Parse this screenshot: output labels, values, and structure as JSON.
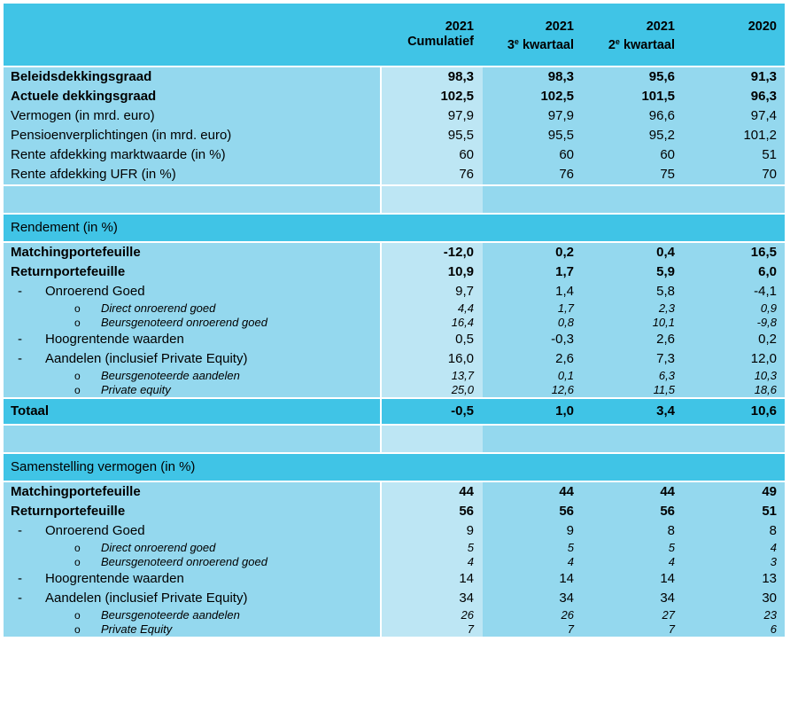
{
  "header": {
    "columns": [
      {
        "year": "2021",
        "label": "Cumulatief",
        "sup": ""
      },
      {
        "year": "2021",
        "label": " kwartaal",
        "prefix": "3",
        "sup": "e"
      },
      {
        "year": "2021",
        "label": " kwartaal",
        "prefix": "2",
        "sup": "e"
      },
      {
        "year": "2020",
        "label": "",
        "sup": ""
      }
    ]
  },
  "top": [
    {
      "label": "Beleidsdekkingsgraad",
      "values": [
        "98,3",
        "98,3",
        "95,6",
        "91,3"
      ],
      "bold": true
    },
    {
      "label": "Actuele dekkingsgraad",
      "values": [
        "102,5",
        "102,5",
        "101,5",
        "96,3"
      ],
      "bold": true
    },
    {
      "label": "Vermogen (in mrd. euro)",
      "values": [
        "97,9",
        "97,9",
        "96,6",
        "97,4"
      ]
    },
    {
      "label": "Pensioenverplichtingen (in mrd. euro)",
      "values": [
        "95,5",
        "95,5",
        "95,2",
        "101,2"
      ]
    },
    {
      "label": "Rente afdekking marktwaarde (in %)",
      "values": [
        "60",
        "60",
        "60",
        "51"
      ]
    },
    {
      "label": "Rente afdekking UFR (in %)",
      "values": [
        "76",
        "76",
        "75",
        "70"
      ]
    }
  ],
  "rendement": {
    "title": "Rendement (in %)",
    "matching": {
      "label": "Matchingportefeuille",
      "values": [
        "-12,0",
        "0,2",
        "0,4",
        "16,5"
      ]
    },
    "return": {
      "label": "Returnportefeuille",
      "values": [
        "10,9",
        "1,7",
        "5,9",
        "6,0"
      ]
    },
    "details": [
      {
        "level": 1,
        "label": "Onroerend Goed",
        "values": [
          "9,7",
          "1,4",
          "5,8",
          "-4,1"
        ]
      },
      {
        "level": 2,
        "label": "Direct onroerend goed",
        "values": [
          "4,4",
          "1,7",
          "2,3",
          "0,9"
        ]
      },
      {
        "level": 2,
        "label": "Beursgenoteerd onroerend goed",
        "values": [
          "16,4",
          "0,8",
          "10,1",
          "-9,8"
        ]
      },
      {
        "level": 1,
        "label": "Hoogrentende waarden",
        "values": [
          "0,5",
          "-0,3",
          "2,6",
          "0,2"
        ]
      },
      {
        "level": 1,
        "label": "Aandelen (inclusief Private Equity)",
        "values": [
          "16,0",
          "2,6",
          "7,3",
          "12,0"
        ]
      },
      {
        "level": 2,
        "label": "Beursgenoteerde aandelen",
        "values": [
          "13,7",
          "0,1",
          "6,3",
          "10,3"
        ]
      },
      {
        "level": 2,
        "label": "Private equity",
        "values": [
          "25,0",
          "12,6",
          "11,5",
          "18,6"
        ]
      }
    ],
    "total": {
      "label": "Totaal",
      "values": [
        "-0,5",
        "1,0",
        "3,4",
        "10,6"
      ]
    }
  },
  "samenstelling": {
    "title": "Samenstelling vermogen (in %)",
    "matching": {
      "label": "Matchingportefeuille",
      "values": [
        "44",
        "44",
        "44",
        "49"
      ]
    },
    "return": {
      "label": "Returnportefeuille",
      "values": [
        "56",
        "56",
        "56",
        "51"
      ]
    },
    "details": [
      {
        "level": 1,
        "label": "Onroerend Goed",
        "values": [
          "9",
          "9",
          "8",
          "8"
        ]
      },
      {
        "level": 2,
        "label": "Direct onroerend goed",
        "values": [
          "5",
          "5",
          "5",
          "4"
        ]
      },
      {
        "level": 2,
        "label": "Beursgenoteerd onroerend goed",
        "values": [
          "4",
          "4",
          "4",
          "3"
        ]
      },
      {
        "level": 1,
        "label": "Hoogrentende waarden",
        "values": [
          "14",
          "14",
          "14",
          "13"
        ]
      },
      {
        "level": 1,
        "label": "Aandelen (inclusief Private Equity)",
        "values": [
          "34",
          "34",
          "34",
          "30"
        ]
      },
      {
        "level": 2,
        "label": "Beursgenoteerde aandelen",
        "values": [
          "26",
          "26",
          "27",
          "23"
        ]
      },
      {
        "level": 2,
        "label": "Private Equity",
        "values": [
          "7",
          "7",
          "7",
          "6"
        ]
      }
    ]
  },
  "markers": {
    "dash": "-",
    "bullet": "o"
  }
}
